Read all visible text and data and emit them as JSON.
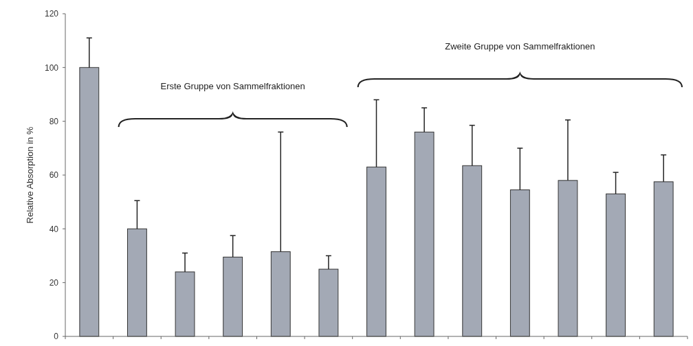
{
  "chart_data": {
    "type": "bar",
    "ylabel": "Relative Absorption in %",
    "categories": [
      null,
      null,
      null,
      null,
      null,
      null,
      null,
      null,
      null,
      null,
      null,
      null,
      null
    ],
    "values": [
      100,
      40,
      24,
      29.5,
      31.5,
      25,
      63,
      76,
      63.5,
      54.5,
      58,
      53,
      57.5
    ],
    "errors": [
      [
        100,
        111
      ],
      [
        40,
        50.5
      ],
      [
        24,
        31
      ],
      [
        29.5,
        37.5
      ],
      [
        31.5,
        76
      ],
      [
        25,
        30
      ],
      [
        63,
        88
      ],
      [
        76,
        85
      ],
      [
        63.5,
        78.5
      ],
      [
        54.5,
        70
      ],
      [
        58,
        80.5
      ],
      [
        53,
        61
      ],
      [
        57.5,
        67.5
      ]
    ],
    "color": "#a3a9b5",
    "ylim": [
      0,
      120
    ],
    "yticks": [
      0,
      20,
      40,
      60,
      80,
      100,
      120
    ],
    "annotations": [
      "Erste Gruppe von Sammelfraktionen",
      "Zweite Gruppe von Sammelfraktionen"
    ]
  }
}
